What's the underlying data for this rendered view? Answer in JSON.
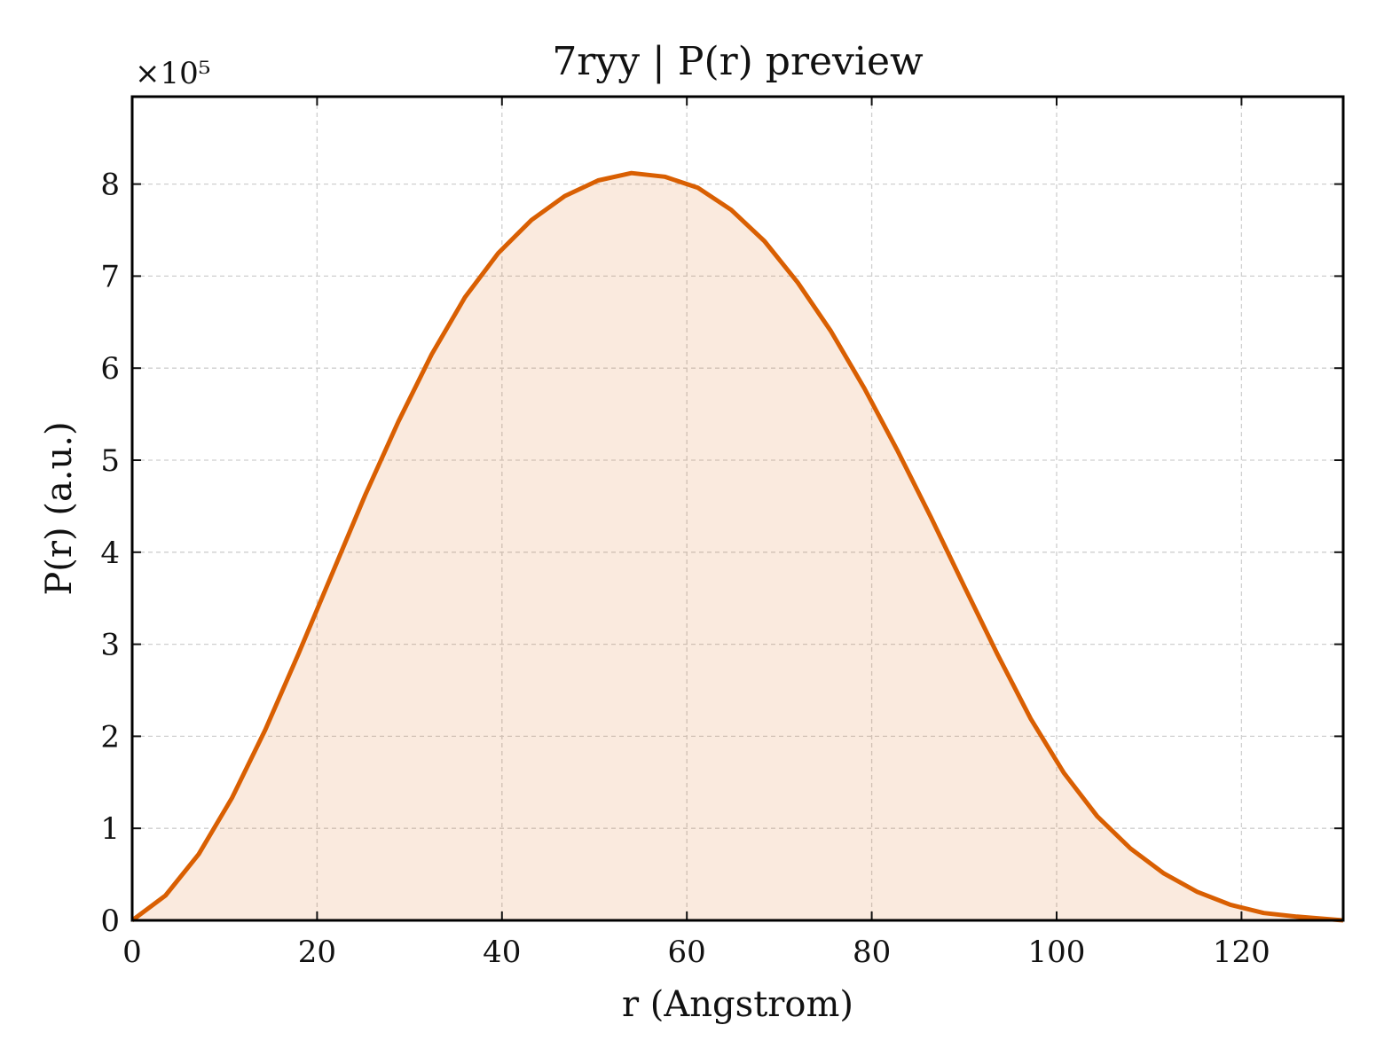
{
  "chart_data": {
    "type": "area",
    "title": "7ryy | P(r) preview",
    "xlabel": "r (Angstrom)",
    "ylabel": "P(r) (a.u.)",
    "y_multiplier_text": "×10⁵",
    "xlim": [
      0,
      131
    ],
    "ylim": [
      0,
      8.95
    ],
    "xticks": [
      0,
      20,
      40,
      60,
      80,
      100,
      120
    ],
    "yticks": [
      0,
      1,
      2,
      3,
      4,
      5,
      6,
      7,
      8
    ],
    "grid": true,
    "colors": {
      "line": "#d95f02",
      "fill": "#d95f02",
      "fill_opacity": 0.13,
      "frame": "#000000"
    },
    "series": [
      {
        "x": [
          0,
          3.6,
          7.2,
          10.8,
          14.4,
          18.0,
          21.6,
          25.2,
          28.8,
          32.4,
          36.0,
          39.6,
          43.2,
          46.8,
          50.4,
          54.0,
          57.6,
          61.2,
          64.8,
          68.4,
          72.0,
          75.6,
          79.2,
          82.8,
          86.4,
          90.0,
          93.6,
          97.2,
          100.8,
          104.4,
          108.0,
          111.6,
          115.2,
          118.8,
          122.4,
          126.0,
          131.0
        ],
        "y": [
          0.0,
          0.27,
          0.72,
          1.33,
          2.07,
          2.9,
          3.76,
          4.62,
          5.42,
          6.15,
          6.77,
          7.25,
          7.61,
          7.87,
          8.04,
          8.12,
          8.08,
          7.96,
          7.72,
          7.38,
          6.93,
          6.4,
          5.78,
          5.1,
          4.38,
          3.63,
          2.89,
          2.19,
          1.6,
          1.13,
          0.78,
          0.51,
          0.31,
          0.17,
          0.08,
          0.04,
          0.0
        ]
      }
    ]
  }
}
